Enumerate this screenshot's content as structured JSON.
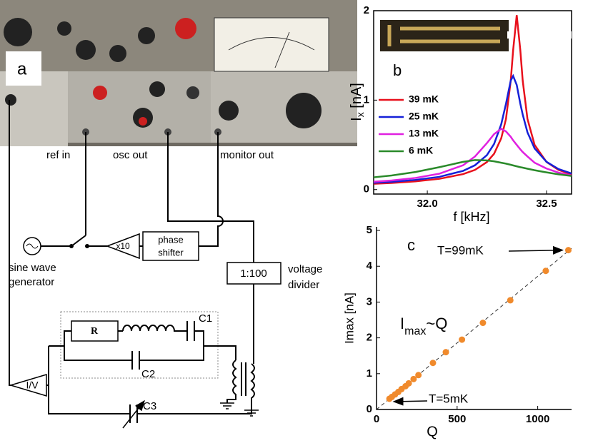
{
  "panel_a": {
    "label": "a",
    "ref_in": "ref in",
    "osc_out": "osc out",
    "monitor_out": "monitor out",
    "generator": [
      "sine wave",
      "generator"
    ],
    "amplifier": "x10",
    "phase_shifter": [
      "phase",
      "shifter"
    ],
    "divider_ratio": "1:100",
    "divider": [
      "voltage",
      "divider"
    ],
    "resistor": "R",
    "c1": "C1",
    "c2": "C2",
    "c3": "C3",
    "iv": "I/V"
  },
  "chart_data": [
    {
      "type": "line",
      "panel": "b",
      "xlabel": "f [kHz]",
      "ylabel": {
        "main": "I",
        "sub": "x",
        "unit": " [nA]"
      },
      "x": [
        31.775,
        31.85,
        31.95,
        32.05,
        32.15,
        32.2,
        32.25,
        32.28,
        32.31,
        32.33,
        32.35,
        32.36,
        32.375,
        32.39,
        32.4,
        32.42,
        32.45,
        32.5,
        32.55,
        32.605
      ],
      "series": [
        {
          "name": "39 mK",
          "color": "#e8101c",
          "values": [
            0.065,
            0.074,
            0.092,
            0.12,
            0.173,
            0.22,
            0.308,
            0.4,
            0.573,
            0.79,
            1.22,
            1.56,
            1.95,
            1.56,
            1.22,
            0.79,
            0.5,
            0.308,
            0.22,
            0.169
          ]
        },
        {
          "name": "25 mK",
          "color": "#1520d8",
          "values": [
            0.076,
            0.087,
            0.108,
            0.142,
            0.209,
            0.272,
            0.385,
            0.51,
            0.73,
            0.96,
            1.22,
            1.27,
            1.17,
            0.96,
            0.84,
            0.64,
            0.46,
            0.31,
            0.23,
            0.18
          ]
        },
        {
          "name": "13 mK",
          "color": "#e020e0",
          "values": [
            0.088,
            0.102,
            0.13,
            0.177,
            0.272,
            0.37,
            0.52,
            0.62,
            0.68,
            0.65,
            0.59,
            0.55,
            0.5,
            0.45,
            0.42,
            0.37,
            0.3,
            0.235,
            0.19,
            0.157
          ]
        },
        {
          "name": "6 mK",
          "color": "#2a8a2a",
          "values": [
            0.137,
            0.157,
            0.196,
            0.25,
            0.31,
            0.33,
            0.326,
            0.316,
            0.3,
            0.29,
            0.277,
            0.27,
            0.26,
            0.25,
            0.245,
            0.233,
            0.216,
            0.192,
            0.17,
            0.152
          ]
        }
      ],
      "xlim": [
        31.775,
        32.605
      ],
      "xticks": [
        {
          "value": 32.0,
          "label": "32.0"
        },
        32.5
      ],
      "ylim": [
        -0.05,
        2.0
      ],
      "yticks": [
        0,
        1,
        2
      ]
    },
    {
      "type": "scatter",
      "panel": "c",
      "xlabel": "Q",
      "ylabel": "Imax [nA]",
      "color": "#f08a2c",
      "x": [
        80,
        95,
        115,
        135,
        155,
        180,
        200,
        230,
        260,
        350,
        430,
        530,
        660,
        830,
        1050,
        1190
      ],
      "values": [
        0.3,
        0.35,
        0.42,
        0.49,
        0.57,
        0.65,
        0.73,
        0.85,
        0.96,
        1.3,
        1.6,
        1.95,
        2.42,
        3.05,
        3.87,
        4.45
      ],
      "fit": {
        "x": [
          0,
          1210
        ],
        "values": [
          0,
          4.5
        ]
      },
      "annotations": {
        "top": "T=99mK",
        "bottom": "T=5mK",
        "relation": {
          "main": "I",
          "sub": "max",
          "rest": "~Q"
        }
      },
      "xlim": [
        0,
        1210
      ],
      "xticks": [
        0,
        500,
        1000
      ],
      "ylim": [
        0,
        5.1
      ],
      "yticks": [
        0,
        1,
        2,
        3,
        4,
        5
      ]
    }
  ]
}
